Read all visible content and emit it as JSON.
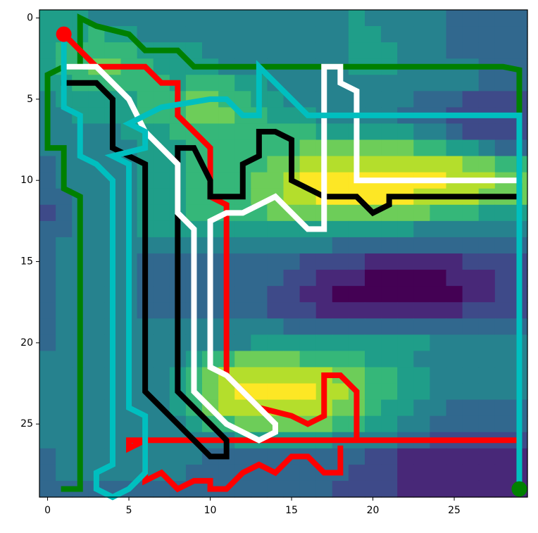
{
  "chart_data": {
    "type": "heatmap",
    "cmap": "viridis",
    "vlim": [
      0,
      9
    ],
    "xlim": [
      -0.5,
      29.5
    ],
    "ylim": [
      29.5,
      -0.5
    ],
    "xticks": [
      0,
      5,
      10,
      15,
      20,
      25
    ],
    "yticks": [
      0,
      5,
      10,
      15,
      20,
      25
    ],
    "z": [
      [
        5,
        5,
        5,
        4,
        4,
        4,
        4,
        4,
        4,
        4,
        4,
        4,
        4,
        4,
        4,
        4,
        4,
        4,
        4,
        5,
        4,
        4,
        4,
        4,
        4,
        3,
        3,
        3,
        3,
        3
      ],
      [
        5,
        5,
        5,
        6,
        5,
        5,
        4,
        4,
        4,
        4,
        4,
        4,
        4,
        4,
        4,
        4,
        4,
        4,
        4,
        5,
        5,
        4,
        4,
        4,
        4,
        3,
        3,
        3,
        3,
        3
      ],
      [
        5,
        6,
        6,
        6,
        6,
        6,
        5,
        5,
        5,
        5,
        4,
        4,
        4,
        4,
        4,
        4,
        4,
        4,
        4,
        5,
        5,
        5,
        4,
        4,
        4,
        3,
        3,
        3,
        3,
        3
      ],
      [
        5,
        6,
        6,
        7,
        7,
        6,
        6,
        5,
        5,
        5,
        5,
        4,
        4,
        4,
        4,
        4,
        4,
        4,
        4,
        5,
        5,
        5,
        4,
        4,
        4,
        4,
        4,
        3,
        3,
        3
      ],
      [
        5,
        5,
        6,
        6,
        6,
        6,
        6,
        6,
        5,
        6,
        6,
        6,
        5,
        5,
        4,
        4,
        4,
        4,
        4,
        4,
        4,
        4,
        4,
        4,
        4,
        4,
        4,
        3,
        3,
        3
      ],
      [
        4,
        5,
        5,
        5,
        5,
        5,
        6,
        6,
        6,
        7,
        7,
        6,
        6,
        5,
        5,
        4,
        4,
        4,
        4,
        4,
        4,
        4,
        4,
        3,
        3,
        3,
        2,
        2,
        2,
        2
      ],
      [
        4,
        4,
        5,
        5,
        5,
        5,
        6,
        6,
        6,
        7,
        7,
        7,
        6,
        6,
        5,
        5,
        5,
        4,
        4,
        4,
        4,
        4,
        3,
        3,
        3,
        2,
        2,
        2,
        2,
        2
      ],
      [
        4,
        4,
        4,
        4,
        4,
        5,
        5,
        5,
        6,
        6,
        6,
        6,
        6,
        6,
        6,
        6,
        6,
        5,
        5,
        5,
        5,
        5,
        5,
        4,
        4,
        3,
        2,
        2,
        2,
        2
      ],
      [
        4,
        4,
        4,
        4,
        4,
        4,
        5,
        5,
        5,
        6,
        6,
        6,
        6,
        6,
        6,
        6,
        7,
        7,
        7,
        7,
        7,
        7,
        7,
        6,
        6,
        5,
        5,
        4,
        3,
        3
      ],
      [
        3,
        4,
        4,
        4,
        4,
        4,
        5,
        5,
        5,
        6,
        6,
        6,
        6,
        6,
        7,
        7,
        8,
        8,
        8,
        8,
        8,
        8,
        8,
        8,
        8,
        8,
        7,
        7,
        6,
        6
      ],
      [
        3,
        4,
        4,
        4,
        4,
        4,
        5,
        5,
        5,
        6,
        6,
        6,
        6,
        7,
        7,
        8,
        9,
        9,
        9,
        9,
        9,
        9,
        9,
        9,
        9,
        8,
        8,
        8,
        7,
        7
      ],
      [
        3,
        3,
        4,
        4,
        4,
        4,
        5,
        5,
        5,
        6,
        6,
        6,
        6,
        7,
        7,
        8,
        8,
        9,
        9,
        9,
        9,
        9,
        9,
        8,
        8,
        8,
        8,
        7,
        7,
        7
      ],
      [
        2,
        3,
        4,
        4,
        4,
        4,
        5,
        5,
        5,
        6,
        6,
        6,
        6,
        6,
        7,
        7,
        7,
        7,
        7,
        7,
        7,
        7,
        7,
        7,
        6,
        6,
        6,
        5,
        5,
        5
      ],
      [
        3,
        3,
        4,
        4,
        4,
        4,
        5,
        5,
        5,
        5,
        5,
        5,
        5,
        5,
        5,
        5,
        5,
        5,
        5,
        5,
        5,
        5,
        5,
        4,
        4,
        4,
        4,
        4,
        4,
        4
      ],
      [
        3,
        4,
        4,
        4,
        4,
        4,
        4,
        4,
        4,
        4,
        4,
        4,
        4,
        4,
        4,
        4,
        4,
        4,
        3,
        3,
        3,
        3,
        3,
        3,
        3,
        3,
        3,
        3,
        3,
        3
      ],
      [
        3,
        4,
        4,
        4,
        4,
        4,
        3,
        3,
        3,
        3,
        3,
        3,
        3,
        3,
        3,
        3,
        2,
        2,
        2,
        2,
        1,
        1,
        1,
        1,
        1,
        1,
        2,
        2,
        2,
        2
      ],
      [
        3,
        4,
        4,
        4,
        4,
        4,
        3,
        3,
        3,
        3,
        3,
        3,
        3,
        3,
        3,
        2,
        2,
        1,
        1,
        1,
        0,
        0,
        0,
        0,
        0,
        1,
        1,
        1,
        2,
        2
      ],
      [
        3,
        4,
        4,
        4,
        4,
        4,
        3,
        3,
        3,
        3,
        3,
        3,
        3,
        3,
        2,
        2,
        1,
        1,
        0,
        0,
        0,
        0,
        0,
        0,
        0,
        0,
        1,
        1,
        2,
        2
      ],
      [
        3,
        4,
        4,
        4,
        4,
        4,
        3,
        3,
        3,
        3,
        3,
        3,
        3,
        3,
        2,
        2,
        2,
        1,
        1,
        1,
        1,
        1,
        1,
        1,
        1,
        1,
        2,
        2,
        2,
        2
      ],
      [
        3,
        4,
        4,
        4,
        4,
        4,
        4,
        4,
        4,
        4,
        4,
        4,
        4,
        4,
        4,
        3,
        3,
        3,
        3,
        3,
        3,
        3,
        3,
        3,
        3,
        3,
        3,
        3,
        3,
        3
      ],
      [
        3,
        4,
        4,
        4,
        4,
        4,
        4,
        4,
        4,
        4,
        4,
        4,
        4,
        5,
        5,
        5,
        5,
        5,
        5,
        5,
        5,
        5,
        5,
        5,
        4,
        4,
        4,
        4,
        4,
        4
      ],
      [
        4,
        4,
        4,
        4,
        4,
        4,
        4,
        4,
        4,
        5,
        6,
        6,
        7,
        7,
        7,
        7,
        6,
        6,
        6,
        6,
        5,
        5,
        5,
        4,
        4,
        4,
        4,
        4,
        4,
        4
      ],
      [
        4,
        4,
        4,
        4,
        4,
        4,
        4,
        4,
        5,
        6,
        7,
        8,
        8,
        8,
        8,
        8,
        8,
        8,
        7,
        7,
        6,
        6,
        5,
        5,
        4,
        4,
        4,
        4,
        4,
        4
      ],
      [
        4,
        4,
        4,
        4,
        4,
        4,
        4,
        4,
        5,
        6,
        7,
        8,
        9,
        9,
        9,
        9,
        9,
        8,
        8,
        7,
        6,
        6,
        5,
        5,
        4,
        4,
        4,
        4,
        4,
        4
      ],
      [
        4,
        4,
        4,
        4,
        4,
        4,
        4,
        4,
        5,
        6,
        7,
        8,
        8,
        8,
        8,
        8,
        8,
        8,
        7,
        7,
        6,
        5,
        5,
        4,
        4,
        3,
        3,
        3,
        3,
        3
      ],
      [
        4,
        4,
        4,
        4,
        4,
        4,
        4,
        4,
        4,
        5,
        6,
        6,
        7,
        7,
        7,
        7,
        7,
        7,
        6,
        6,
        5,
        5,
        4,
        4,
        3,
        3,
        3,
        3,
        3,
        3
      ],
      [
        4,
        4,
        4,
        4,
        4,
        4,
        4,
        4,
        4,
        4,
        4,
        4,
        5,
        5,
        5,
        5,
        5,
        5,
        4,
        4,
        4,
        4,
        3,
        3,
        2,
        2,
        2,
        2,
        2,
        2
      ],
      [
        3,
        4,
        4,
        4,
        4,
        4,
        4,
        4,
        4,
        4,
        3,
        3,
        3,
        3,
        3,
        3,
        3,
        3,
        3,
        3,
        2,
        2,
        1,
        1,
        1,
        1,
        1,
        1,
        1,
        1
      ],
      [
        3,
        4,
        4,
        4,
        4,
        4,
        4,
        4,
        4,
        3,
        3,
        3,
        3,
        3,
        3,
        3,
        3,
        3,
        3,
        2,
        2,
        2,
        1,
        1,
        1,
        1,
        1,
        1,
        1,
        1
      ],
      [
        3,
        3,
        3,
        3,
        3,
        3,
        3,
        3,
        3,
        3,
        3,
        3,
        3,
        3,
        3,
        3,
        3,
        3,
        2,
        2,
        2,
        2,
        1,
        1,
        1,
        1,
        1,
        1,
        1,
        1
      ]
    ],
    "series": [
      {
        "color": "#008000",
        "x": [
          1,
          2,
          2,
          1,
          1,
          0,
          0,
          1,
          2,
          2,
          3,
          5,
          6,
          7,
          8,
          9,
          10,
          28,
          29,
          29
        ],
        "y": [
          29,
          29,
          11,
          10.5,
          8,
          8,
          3.5,
          3,
          3,
          0,
          0.5,
          1,
          2,
          2,
          2,
          3,
          3,
          3,
          3.2,
          29
        ]
      },
      {
        "color": "#ff0000",
        "x": [
          1,
          2,
          3,
          5,
          6,
          7,
          8,
          8,
          9,
          10,
          10,
          11,
          11,
          12,
          13,
          15,
          16,
          17,
          17,
          18,
          19,
          19,
          29,
          5,
          5,
          6,
          6,
          7,
          8,
          9,
          10,
          10,
          11,
          12,
          13,
          14,
          15,
          16,
          17,
          18,
          18
        ],
        "y": [
          1,
          2,
          3,
          3,
          3,
          4,
          4,
          6,
          7,
          8,
          11,
          11.5,
          22,
          23,
          24,
          24.5,
          25,
          24.5,
          22,
          22,
          23,
          26,
          26,
          26,
          26.5,
          26,
          28.5,
          28,
          29,
          28.5,
          28.5,
          29,
          29,
          28,
          27.5,
          28,
          27,
          27,
          28,
          28,
          26.5
        ]
      },
      {
        "color": "#000000",
        "x": [
          1,
          3,
          4,
          4,
          6,
          6,
          7,
          8,
          9,
          10,
          11,
          11,
          8,
          8,
          9,
          10,
          10,
          12,
          12,
          13,
          13,
          14,
          15,
          15,
          16,
          17,
          19,
          20,
          21,
          21,
          22,
          29
        ],
        "y": [
          4,
          4,
          5,
          8,
          9,
          23,
          24,
          25,
          26,
          27,
          27,
          26,
          23,
          8,
          8,
          10,
          11,
          11,
          9,
          8.5,
          7,
          7,
          7.5,
          10,
          10.5,
          11,
          11,
          12,
          11.5,
          11,
          11,
          11
        ]
      },
      {
        "color": "#ffffff",
        "x": [
          1,
          3,
          4,
          5,
          6,
          7,
          8,
          8,
          9,
          9,
          10,
          11,
          13,
          14,
          14,
          13,
          11,
          10,
          10,
          11,
          12,
          13,
          14,
          15,
          16,
          17,
          17,
          18,
          18,
          19,
          19,
          29
        ],
        "y": [
          3,
          3,
          4,
          5,
          7,
          8,
          9,
          12,
          13,
          23,
          24,
          25,
          26,
          25.5,
          25,
          24,
          22,
          21.5,
          12.5,
          12,
          12,
          11.5,
          11,
          12,
          13,
          13,
          3,
          3,
          4,
          4.5,
          10,
          10
        ]
      },
      {
        "color": "#00bfbf",
        "x": [
          29,
          29,
          28,
          16,
          15,
          14,
          13,
          13,
          12,
          11,
          10,
          7,
          6,
          5,
          6,
          6,
          4,
          5,
          5,
          6,
          6,
          5,
          4,
          3,
          3,
          4,
          4,
          3,
          2,
          2,
          1,
          1
        ],
        "y": [
          29,
          6,
          6,
          6,
          5,
          4,
          3,
          6,
          6,
          5,
          5,
          5.5,
          6,
          6.5,
          7,
          8,
          8.5,
          9,
          24,
          24.5,
          28,
          29,
          29.5,
          29,
          28,
          27.5,
          10,
          9,
          8.5,
          6,
          5.5,
          1
        ]
      }
    ],
    "markers": [
      {
        "x": 1,
        "y": 1,
        "color": "#ff0000"
      },
      {
        "x": 29,
        "y": 29,
        "color": "#008000"
      }
    ]
  }
}
